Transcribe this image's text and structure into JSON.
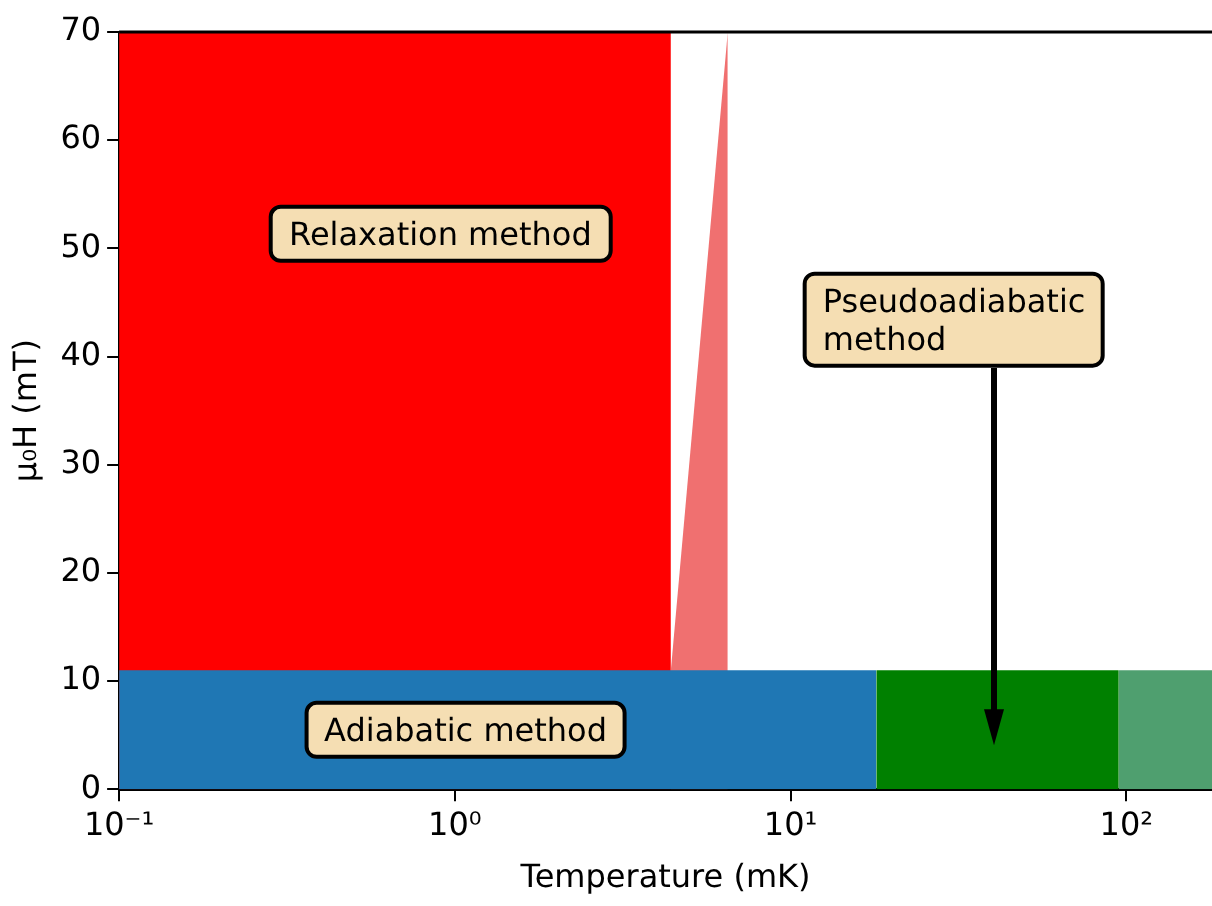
{
  "chart_data": {
    "type": "area",
    "xlabel": "Temperature (mK)",
    "ylabel": "μ₀H (mT)",
    "xlim": [
      0.1,
      180
    ],
    "xticks": [
      {
        "value": 0.1,
        "label": "10⁻¹"
      },
      {
        "value": 1,
        "label": "10⁰"
      },
      {
        "value": 10,
        "label": "10¹"
      },
      {
        "value": 100,
        "label": "10²"
      }
    ],
    "ylim": [
      0,
      70
    ],
    "yticks": [
      0,
      10,
      20,
      30,
      40,
      50,
      60,
      70
    ],
    "log": "x",
    "grid": false,
    "legend": false,
    "series": [
      {
        "color": "#f07070",
        "x": [
          4.4,
          6.5
        ],
        "values": [
          11,
          70
        ]
      },
      {
        "color": "#ff0000",
        "x": [
          0.1,
          4.4
        ],
        "values": [
          70,
          70
        ]
      },
      {
        "color": "#1f77b4",
        "x": [
          0.1,
          18
        ],
        "values": [
          11,
          11
        ]
      },
      {
        "color": "#008000",
        "x": [
          18,
          95
        ],
        "values": [
          11,
          11
        ]
      },
      {
        "color": "#4f9f6f",
        "x": [
          95,
          180
        ],
        "values": [
          11,
          11
        ]
      }
    ],
    "annotations": [
      "Relaxation method",
      "Pseudoadiabatic\nmethod",
      "Adiabatic method"
    ]
  }
}
